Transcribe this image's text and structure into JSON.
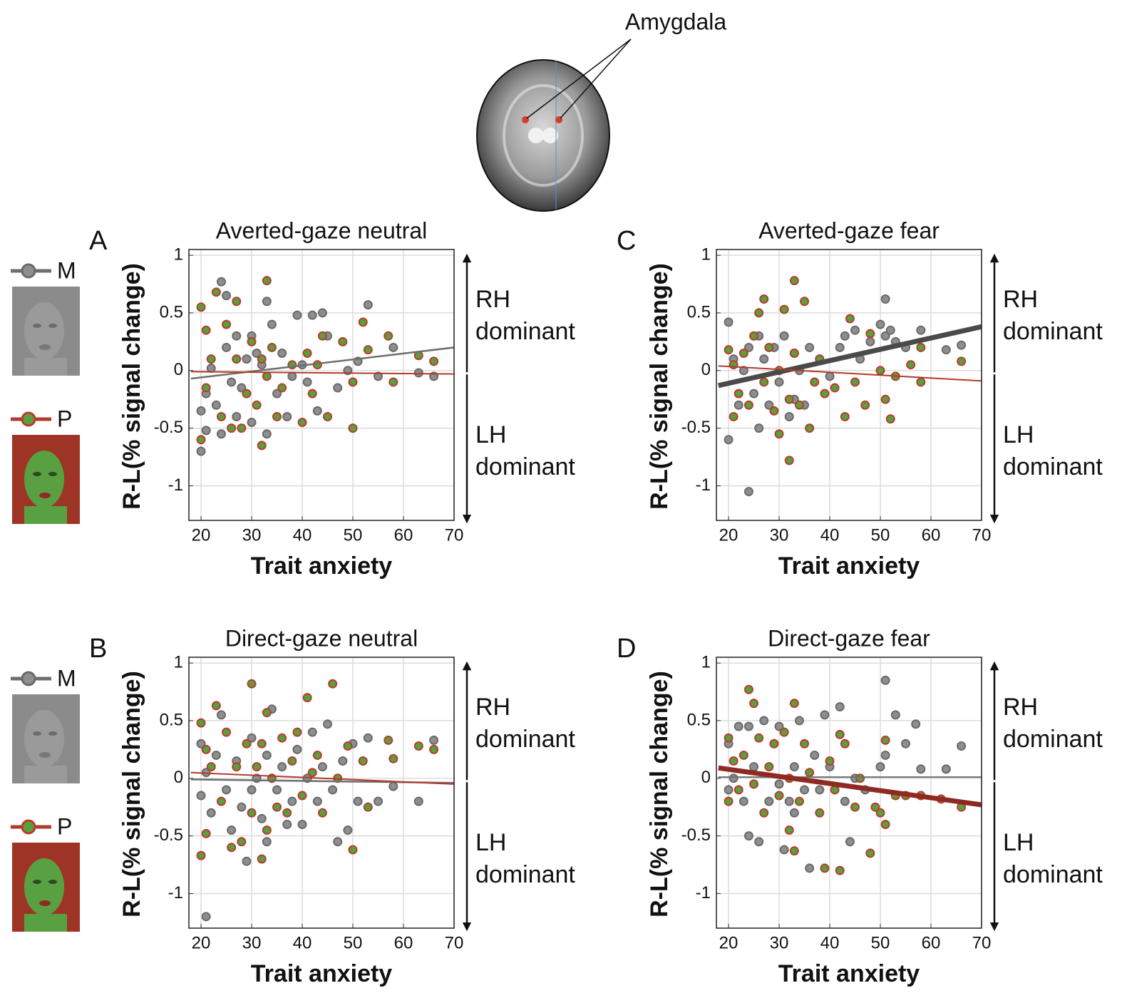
{
  "header": {
    "label": "Amygdala"
  },
  "chart_data": [
    {
      "type": "scatter",
      "panel": "A",
      "title": "Averted-gaze neutral",
      "xlabel": "Trait anxiety",
      "ylabel": "R-L(% signal change)",
      "xlim": [
        17.6,
        70
      ],
      "ylim": [
        -1.3,
        1.05
      ],
      "xticks": [
        20,
        30,
        40,
        50,
        60,
        70
      ],
      "yticks": [
        1,
        0.5,
        0,
        -0.5,
        -1
      ],
      "grid": true,
      "annotations": [
        [
          "RH",
          "dominant"
        ],
        [
          "LH",
          "dominant"
        ]
      ],
      "series": [
        {
          "name": "M",
          "color": "#8e8e8e",
          "edgecolor": "#6a6a6a",
          "x": [
            20,
            20,
            21,
            21,
            22,
            23,
            24,
            24,
            25,
            25,
            26,
            27,
            27,
            28,
            29,
            30,
            30,
            31,
            32,
            33,
            33,
            34,
            35,
            36,
            37,
            38,
            39,
            40,
            41,
            42,
            43,
            44,
            45,
            47,
            49,
            51,
            53,
            55,
            58,
            63,
            66
          ],
          "values": [
            -0.7,
            -0.35,
            -0.52,
            -0.2,
            0.02,
            -0.3,
            0.77,
            -0.55,
            0.2,
            0.65,
            -0.1,
            0.3,
            -0.4,
            -0.15,
            0.1,
            0.3,
            -0.45,
            0.15,
            0.05,
            -0.55,
            0.6,
            0.4,
            -0.2,
            0.15,
            -0.4,
            -0.05,
            0.48,
            0.05,
            -0.1,
            0.48,
            -0.35,
            0.5,
            0.3,
            -0.15,
            0,
            0.08,
            0.57,
            -0.05,
            0.2,
            -0.02,
            -0.05
          ],
          "fit": {
            "x": [
              18,
              70
            ],
            "values": [
              -0.07,
              0.2
            ],
            "color": "#6e6e6e",
            "width": 2.5
          }
        },
        {
          "name": "P",
          "color": "#55a13e",
          "edgecolor": "#c0392b",
          "x": [
            20,
            20,
            21,
            21,
            22,
            23,
            24,
            25,
            26,
            27,
            27,
            28,
            29,
            30,
            31,
            32,
            32,
            33,
            33,
            34,
            35,
            36,
            38,
            40,
            41,
            42,
            43,
            44,
            45,
            48,
            50,
            50,
            52,
            53,
            57,
            58,
            63,
            66
          ],
          "values": [
            0.55,
            -0.6,
            0.35,
            -0.15,
            0.1,
            0.68,
            -0.4,
            0.4,
            -0.5,
            0.6,
            0.1,
            -0.5,
            -0.2,
            0.25,
            -0.3,
            0.1,
            -0.65,
            0.78,
            -0.05,
            0.2,
            -0.4,
            -0.15,
            0.05,
            -0.45,
            0.15,
            -0.2,
            0.05,
            0.3,
            -0.4,
            0.25,
            -0.5,
            -0.1,
            0.42,
            0.18,
            0.3,
            -0.1,
            0.13,
            0.08
          ],
          "fit": {
            "x": [
              18,
              70
            ],
            "values": [
              -0.01,
              -0.03
            ],
            "color": "#b03a2e",
            "width": 2
          }
        }
      ]
    },
    {
      "type": "scatter",
      "panel": "B",
      "title": "Direct-gaze neutral",
      "xlabel": "Trait anxiety",
      "ylabel": "R-L(% signal change)",
      "xlim": [
        17.6,
        70
      ],
      "ylim": [
        -1.3,
        1.05
      ],
      "xticks": [
        20,
        30,
        40,
        50,
        60,
        70
      ],
      "yticks": [
        1,
        0.5,
        0,
        -0.5,
        -1
      ],
      "grid": true,
      "annotations": [
        [
          "RH",
          "dominant"
        ],
        [
          "LH",
          "dominant"
        ]
      ],
      "series": [
        {
          "name": "M",
          "color": "#8e8e8e",
          "edgecolor": "#6a6a6a",
          "x": [
            20,
            20,
            21,
            21,
            22,
            23,
            24,
            25,
            26,
            27,
            28,
            29,
            30,
            30,
            31,
            32,
            33,
            33,
            34,
            35,
            36,
            37,
            38,
            39,
            40,
            41,
            42,
            43,
            44,
            45,
            46,
            47,
            48,
            49,
            50,
            51,
            53,
            55,
            58,
            63,
            66
          ],
          "values": [
            -0.15,
            0.3,
            -1.2,
            0.05,
            -0.3,
            0.2,
            0.55,
            -0.1,
            -0.45,
            0.15,
            -0.25,
            -0.72,
            0.35,
            -0.1,
            0,
            -0.35,
            -0.55,
            0.2,
            0.6,
            -0.1,
            0.1,
            -0.4,
            -0.2,
            0.25,
            -0.4,
            0,
            0.4,
            -0.2,
            0.1,
            0.47,
            -0.1,
            -0.55,
            0.15,
            -0.45,
            0.3,
            -0.2,
            0.35,
            -0.2,
            -0.07,
            -0.2,
            0.33
          ],
          "fit": {
            "x": [
              18,
              70
            ],
            "values": [
              -0.01,
              -0.04
            ],
            "color": "#6e6e6e",
            "width": 2.5
          }
        },
        {
          "name": "P",
          "color": "#55a13e",
          "edgecolor": "#c0392b",
          "x": [
            20,
            20,
            21,
            21,
            22,
            23,
            24,
            25,
            26,
            27,
            28,
            29,
            30,
            30,
            31,
            32,
            32,
            33,
            33,
            34,
            35,
            36,
            37,
            38,
            39,
            40,
            41,
            42,
            43,
            44,
            46,
            47,
            49,
            50,
            52,
            53,
            57,
            58,
            63,
            66
          ],
          "values": [
            0.48,
            -0.67,
            -0.48,
            0.25,
            0.1,
            0.63,
            -0.2,
            0.4,
            -0.6,
            0.1,
            -0.55,
            0.3,
            0.82,
            -0.3,
            0.1,
            -0.7,
            0.3,
            -0.45,
            0.57,
            0,
            -0.25,
            0.35,
            -0.3,
            0.15,
            0.4,
            -0.15,
            0.7,
            0.05,
            0.2,
            -0.3,
            0.82,
            0,
            0.28,
            -0.62,
            0.15,
            -0.25,
            0.33,
            0.17,
            0.28,
            0.25
          ],
          "fit": {
            "x": [
              18,
              70
            ],
            "values": [
              0.05,
              -0.05
            ],
            "color": "#b03a2e",
            "width": 2
          }
        }
      ]
    },
    {
      "type": "scatter",
      "panel": "C",
      "title": "Averted-gaze fear",
      "xlabel": "Trait anxiety",
      "ylabel": "R-L(% signal change)",
      "xlim": [
        17.6,
        70
      ],
      "ylim": [
        -1.3,
        1.05
      ],
      "xticks": [
        20,
        30,
        40,
        50,
        60,
        70
      ],
      "yticks": [
        1,
        0.5,
        0,
        -0.5,
        -1
      ],
      "grid": true,
      "annotations": [
        [
          "RH",
          "dominant"
        ],
        [
          "LH",
          "dominant"
        ]
      ],
      "series": [
        {
          "name": "M",
          "color": "#8e8e8e",
          "edgecolor": "#6a6a6a",
          "x": [
            20,
            20,
            21,
            22,
            23,
            24,
            24,
            25,
            26,
            26,
            27,
            28,
            29,
            30,
            31,
            32,
            33,
            33,
            34,
            35,
            36,
            38,
            40,
            42,
            43,
            45,
            46,
            48,
            50,
            51,
            51,
            52,
            53,
            55,
            58,
            63,
            66
          ],
          "values": [
            0.42,
            -0.6,
            0.1,
            -0.3,
            0,
            -1.05,
            0.2,
            -0.2,
            0.3,
            -0.5,
            0.1,
            -0.3,
            0.2,
            -0.1,
            0.3,
            -0.4,
            0.15,
            -0.25,
            0,
            -0.3,
            0.2,
            0.1,
            -0.05,
            0.2,
            0.3,
            0.35,
            0.1,
            0.25,
            0.4,
            0.62,
            0.3,
            0.35,
            0.25,
            0.2,
            0.35,
            0.18,
            0.22
          ],
          "fit": {
            "x": [
              18,
              70
            ],
            "values": [
              -0.13,
              0.38
            ],
            "color": "#4a4a4a",
            "width": 7
          }
        },
        {
          "name": "P",
          "color": "#55a13e",
          "edgecolor": "#c0392b",
          "x": [
            20,
            21,
            21,
            22,
            23,
            24,
            25,
            26,
            27,
            27,
            28,
            29,
            30,
            30,
            31,
            32,
            32,
            33,
            33,
            34,
            35,
            36,
            37,
            38,
            39,
            41,
            43,
            44,
            45,
            47,
            48,
            50,
            51,
            52,
            53,
            56,
            58,
            58,
            66
          ],
          "values": [
            0.18,
            -0.4,
            0.05,
            -0.2,
            0.15,
            -0.3,
            0.3,
            0.5,
            0.62,
            -0.1,
            0.2,
            -0.35,
            0,
            -0.55,
            0.53,
            -0.25,
            -0.78,
            0.78,
            0.15,
            -0.3,
            0.6,
            -0.5,
            -0.1,
            0.1,
            -0.2,
            -0.15,
            -0.4,
            0.45,
            -0.1,
            -0.3,
            0.32,
            0,
            -0.25,
            -0.42,
            -0.05,
            0.05,
            -0.1,
            0.2,
            0.08
          ],
          "fit": {
            "x": [
              18,
              70
            ],
            "values": [
              0.04,
              -0.09
            ],
            "color": "#b03a2e",
            "width": 2
          }
        }
      ]
    },
    {
      "type": "scatter",
      "panel": "D",
      "title": "Direct-gaze fear",
      "xlabel": "Trait anxiety",
      "ylabel": "R-L(% signal change)",
      "xlim": [
        17.6,
        70
      ],
      "ylim": [
        -1.3,
        1.05
      ],
      "xticks": [
        20,
        30,
        40,
        50,
        60,
        70
      ],
      "yticks": [
        1,
        0.5,
        0,
        -0.5,
        -1
      ],
      "grid": true,
      "annotations": [
        [
          "RH",
          "dominant"
        ],
        [
          "LH",
          "dominant"
        ]
      ],
      "series": [
        {
          "name": "M",
          "color": "#8e8e8e",
          "edgecolor": "#6a6a6a",
          "x": [
            20,
            20,
            21,
            22,
            23,
            24,
            24,
            25,
            26,
            27,
            28,
            29,
            30,
            30,
            31,
            32,
            33,
            33,
            34,
            35,
            36,
            37,
            38,
            39,
            40,
            42,
            43,
            44,
            45,
            47,
            50,
            51,
            51,
            53,
            55,
            57,
            58,
            63,
            66
          ],
          "values": [
            0.3,
            -0.1,
            0,
            0.45,
            -0.2,
            -0.5,
            0.45,
            0.1,
            -0.55,
            0.5,
            -0.2,
            0.3,
            -0.05,
            0.45,
            -0.62,
            -0.2,
            0.1,
            -0.3,
            0.5,
            -0.1,
            -0.78,
            0.2,
            -0.1,
            0.55,
            0.1,
            0.62,
            -0.2,
            -0.55,
            0,
            -0.1,
            0.1,
            0.85,
            0.2,
            0.55,
            0.3,
            0.47,
            0.08,
            0.08,
            0.28
          ],
          "fit": {
            "x": [
              18,
              70
            ],
            "values": [
              0.01,
              0.01
            ],
            "color": "#6e6e6e",
            "width": 2
          }
        },
        {
          "name": "P",
          "color": "#55a13e",
          "edgecolor": "#c0392b",
          "x": [
            20,
            20,
            21,
            22,
            23,
            24,
            25,
            25,
            26,
            27,
            28,
            29,
            30,
            31,
            32,
            32,
            33,
            33,
            34,
            35,
            36,
            38,
            39,
            40,
            41,
            42,
            42,
            43,
            45,
            46,
            48,
            49,
            50,
            51,
            51,
            53,
            55,
            58,
            62,
            66
          ],
          "values": [
            0.35,
            -0.2,
            0.15,
            -0.1,
            0.2,
            0.77,
            0.65,
            -0.05,
            0.35,
            -0.3,
            0.1,
            0.3,
            -0.15,
            0.4,
            -0.45,
            0,
            0.65,
            -0.63,
            -0.2,
            0.3,
            0.05,
            -0.3,
            -0.78,
            0.15,
            -0.1,
            -0.8,
            0.38,
            0.3,
            -0.25,
            0,
            -0.65,
            -0.25,
            -0.3,
            0.33,
            -0.4,
            -0.15,
            -0.15,
            -0.15,
            -0.18,
            -0.25
          ],
          "fit": {
            "x": [
              18,
              70
            ],
            "values": [
              0.09,
              -0.23
            ],
            "color": "#8e2a22",
            "width": 7
          }
        }
      ]
    }
  ]
}
